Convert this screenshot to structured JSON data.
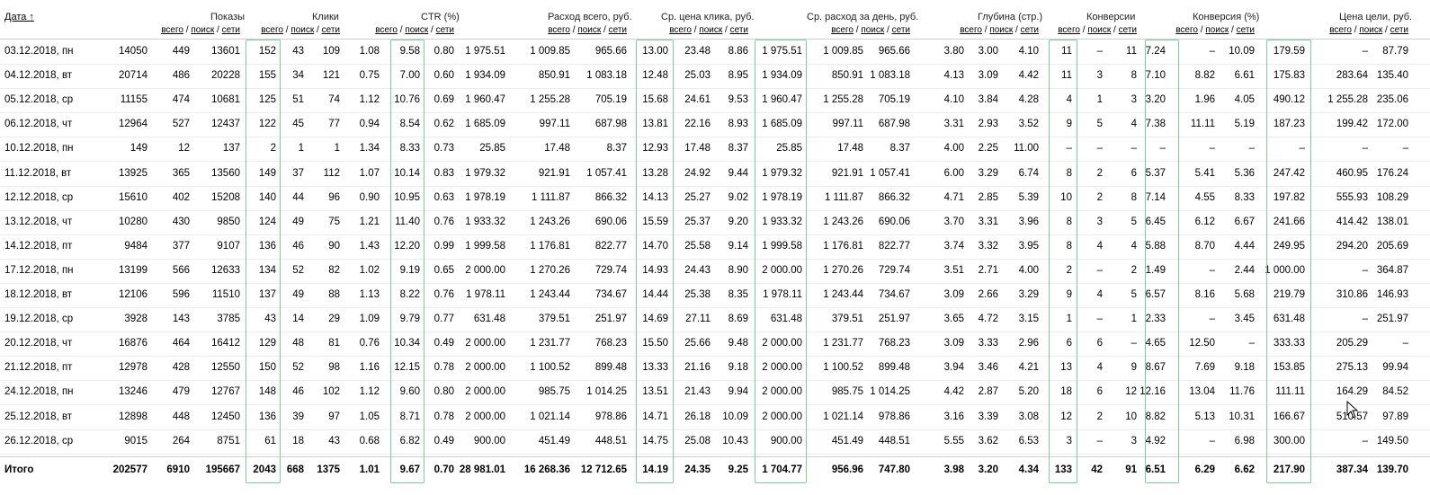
{
  "headers": {
    "date": "Дата ↑",
    "shows": "Показы",
    "clicks": "Клики",
    "ctr": "CTR (%)",
    "spend": "Расход всего, руб.",
    "cpc": "Ср. цена клика, руб.",
    "daily": "Ср. расход за день, руб.",
    "depth": "Глубина (стр.)",
    "conv": "Конверсии",
    "convrate": "Конверсия (%)",
    "goalprice": "Цена цели, руб.",
    "sub_all": "всего",
    "sub_search": "поиск",
    "sub_net": "сети",
    "sep": " / "
  },
  "rows": [
    [
      "03.12.2018, пн",
      "14050",
      "449",
      "13601",
      "152",
      "43",
      "109",
      "1.08",
      "9.58",
      "0.80",
      "1 975.51",
      "1 009.85",
      "965.66",
      "13.00",
      "23.48",
      "8.86",
      "1 975.51",
      "1 009.85",
      "965.66",
      "3.80",
      "3.00",
      "4.10",
      "11",
      "–",
      "11",
      "7.24",
      "–",
      "10.09",
      "179.59",
      "–",
      "87.79"
    ],
    [
      "04.12.2018, вт",
      "20714",
      "486",
      "20228",
      "155",
      "34",
      "121",
      "0.75",
      "7.00",
      "0.60",
      "1 934.09",
      "850.91",
      "1 083.18",
      "12.48",
      "25.03",
      "8.95",
      "1 934.09",
      "850.91",
      "1 083.18",
      "4.13",
      "3.09",
      "4.42",
      "11",
      "3",
      "8",
      "7.10",
      "8.82",
      "6.61",
      "175.83",
      "283.64",
      "135.40"
    ],
    [
      "05.12.2018, ср",
      "11155",
      "474",
      "10681",
      "125",
      "51",
      "74",
      "1.12",
      "10.76",
      "0.69",
      "1 960.47",
      "1 255.28",
      "705.19",
      "15.68",
      "24.61",
      "9.53",
      "1 960.47",
      "1 255.28",
      "705.19",
      "4.10",
      "3.84",
      "4.28",
      "4",
      "1",
      "3",
      "3.20",
      "1.96",
      "4.05",
      "490.12",
      "1 255.28",
      "235.06"
    ],
    [
      "06.12.2018, чт",
      "12964",
      "527",
      "12437",
      "122",
      "45",
      "77",
      "0.94",
      "8.54",
      "0.62",
      "1 685.09",
      "997.11",
      "687.98",
      "13.81",
      "22.16",
      "8.93",
      "1 685.09",
      "997.11",
      "687.98",
      "3.31",
      "2.93",
      "3.52",
      "9",
      "5",
      "4",
      "7.38",
      "11.11",
      "5.19",
      "187.23",
      "199.42",
      "172.00"
    ],
    [
      "10.12.2018, пн",
      "149",
      "12",
      "137",
      "2",
      "1",
      "1",
      "1.34",
      "8.33",
      "0.73",
      "25.85",
      "17.48",
      "8.37",
      "12.93",
      "17.48",
      "8.37",
      "25.85",
      "17.48",
      "8.37",
      "4.00",
      "2.25",
      "11.00",
      "–",
      "–",
      "–",
      "–",
      "–",
      "–",
      "–",
      "–",
      "–"
    ],
    [
      "11.12.2018, вт",
      "13925",
      "365",
      "13560",
      "149",
      "37",
      "112",
      "1.07",
      "10.14",
      "0.83",
      "1 979.32",
      "921.91",
      "1 057.41",
      "13.28",
      "24.92",
      "9.44",
      "1 979.32",
      "921.91",
      "1 057.41",
      "6.00",
      "3.29",
      "6.74",
      "8",
      "2",
      "6",
      "5.37",
      "5.41",
      "5.36",
      "247.42",
      "460.95",
      "176.24"
    ],
    [
      "12.12.2018, ср",
      "15610",
      "402",
      "15208",
      "140",
      "44",
      "96",
      "0.90",
      "10.95",
      "0.63",
      "1 978.19",
      "1 111.87",
      "866.32",
      "14.13",
      "25.27",
      "9.02",
      "1 978.19",
      "1 111.87",
      "866.32",
      "4.71",
      "2.85",
      "5.39",
      "10",
      "2",
      "8",
      "7.14",
      "4.55",
      "8.33",
      "197.82",
      "555.93",
      "108.29"
    ],
    [
      "13.12.2018, чт",
      "10280",
      "430",
      "9850",
      "124",
      "49",
      "75",
      "1.21",
      "11.40",
      "0.76",
      "1 933.32",
      "1 243.26",
      "690.06",
      "15.59",
      "25.37",
      "9.20",
      "1 933.32",
      "1 243.26",
      "690.06",
      "3.70",
      "3.31",
      "3.96",
      "8",
      "3",
      "5",
      "6.45",
      "6.12",
      "6.67",
      "241.66",
      "414.42",
      "138.01"
    ],
    [
      "14.12.2018, пт",
      "9484",
      "377",
      "9107",
      "136",
      "46",
      "90",
      "1.43",
      "12.20",
      "0.99",
      "1 999.58",
      "1 176.81",
      "822.77",
      "14.70",
      "25.58",
      "9.14",
      "1 999.58",
      "1 176.81",
      "822.77",
      "3.74",
      "3.32",
      "3.95",
      "8",
      "4",
      "4",
      "5.88",
      "8.70",
      "4.44",
      "249.95",
      "294.20",
      "205.69"
    ],
    [
      "17.12.2018, пн",
      "13199",
      "566",
      "12633",
      "134",
      "52",
      "82",
      "1.02",
      "9.19",
      "0.65",
      "2 000.00",
      "1 270.26",
      "729.74",
      "14.93",
      "24.43",
      "8.90",
      "2 000.00",
      "1 270.26",
      "729.74",
      "3.51",
      "2.71",
      "4.00",
      "2",
      "–",
      "2",
      "1.49",
      "–",
      "2.44",
      "1 000.00",
      "–",
      "364.87"
    ],
    [
      "18.12.2018, вт",
      "12106",
      "596",
      "11510",
      "137",
      "49",
      "88",
      "1.13",
      "8.22",
      "0.76",
      "1 978.11",
      "1 243.44",
      "734.67",
      "14.44",
      "25.38",
      "8.35",
      "1 978.11",
      "1 243.44",
      "734.67",
      "3.09",
      "2.66",
      "3.29",
      "9",
      "4",
      "5",
      "6.57",
      "8.16",
      "5.68",
      "219.79",
      "310.86",
      "146.93"
    ],
    [
      "19.12.2018, ср",
      "3928",
      "143",
      "3785",
      "43",
      "14",
      "29",
      "1.09",
      "9.79",
      "0.77",
      "631.48",
      "379.51",
      "251.97",
      "14.69",
      "27.11",
      "8.69",
      "631.48",
      "379.51",
      "251.97",
      "3.65",
      "4.72",
      "3.15",
      "1",
      "–",
      "1",
      "2.33",
      "–",
      "3.45",
      "631.48",
      "–",
      "251.97"
    ],
    [
      "20.12.2018, чт",
      "16876",
      "464",
      "16412",
      "129",
      "48",
      "81",
      "0.76",
      "10.34",
      "0.49",
      "2 000.00",
      "1 231.77",
      "768.23",
      "15.50",
      "25.66",
      "9.48",
      "2 000.00",
      "1 231.77",
      "768.23",
      "3.09",
      "3.33",
      "2.96",
      "6",
      "6",
      "–",
      "4.65",
      "12.50",
      "–",
      "333.33",
      "205.29",
      "–"
    ],
    [
      "21.12.2018, пт",
      "12978",
      "428",
      "12550",
      "150",
      "52",
      "98",
      "1.16",
      "12.15",
      "0.78",
      "2 000.00",
      "1 100.52",
      "899.48",
      "13.33",
      "21.16",
      "9.18",
      "2 000.00",
      "1 100.52",
      "899.48",
      "3.94",
      "3.46",
      "4.21",
      "13",
      "4",
      "9",
      "8.67",
      "7.69",
      "9.18",
      "153.85",
      "275.13",
      "99.94"
    ],
    [
      "24.12.2018, пн",
      "13246",
      "479",
      "12767",
      "148",
      "46",
      "102",
      "1.12",
      "9.60",
      "0.80",
      "2 000.00",
      "985.75",
      "1 014.25",
      "13.51",
      "21.43",
      "9.94",
      "2 000.00",
      "985.75",
      "1 014.25",
      "4.42",
      "2.87",
      "5.20",
      "18",
      "6",
      "12",
      "12.16",
      "13.04",
      "11.76",
      "111.11",
      "164.29",
      "84.52"
    ],
    [
      "25.12.2018, вт",
      "12898",
      "448",
      "12450",
      "136",
      "39",
      "97",
      "1.05",
      "8.71",
      "0.78",
      "2 000.00",
      "1 021.14",
      "978.86",
      "14.71",
      "26.18",
      "10.09",
      "2 000.00",
      "1 021.14",
      "978.86",
      "3.16",
      "3.39",
      "3.08",
      "12",
      "2",
      "10",
      "8.82",
      "5.13",
      "10.31",
      "166.67",
      "510.57",
      "97.89"
    ],
    [
      "26.12.2018, ср",
      "9015",
      "264",
      "8751",
      "61",
      "18",
      "43",
      "0.68",
      "6.82",
      "0.49",
      "900.00",
      "451.49",
      "448.51",
      "14.75",
      "25.08",
      "10.43",
      "900.00",
      "451.49",
      "448.51",
      "5.55",
      "3.62",
      "6.53",
      "3",
      "–",
      "3",
      "4.92",
      "–",
      "6.98",
      "300.00",
      "–",
      "149.50"
    ]
  ],
  "total": [
    "Итого",
    "202577",
    "6910",
    "195667",
    "2043",
    "668",
    "1375",
    "1.01",
    "9.67",
    "0.70",
    "28 981.01",
    "16 268.36",
    "12 712.65",
    "14.19",
    "24.35",
    "9.25",
    "1 704.77",
    "956.96",
    "747.80",
    "3.98",
    "3.20",
    "4.34",
    "133",
    "42",
    "91",
    "6.51",
    "6.29",
    "6.62",
    "217.90",
    "387.34",
    "139.70"
  ],
  "highlight_color": "#7ccf9a"
}
